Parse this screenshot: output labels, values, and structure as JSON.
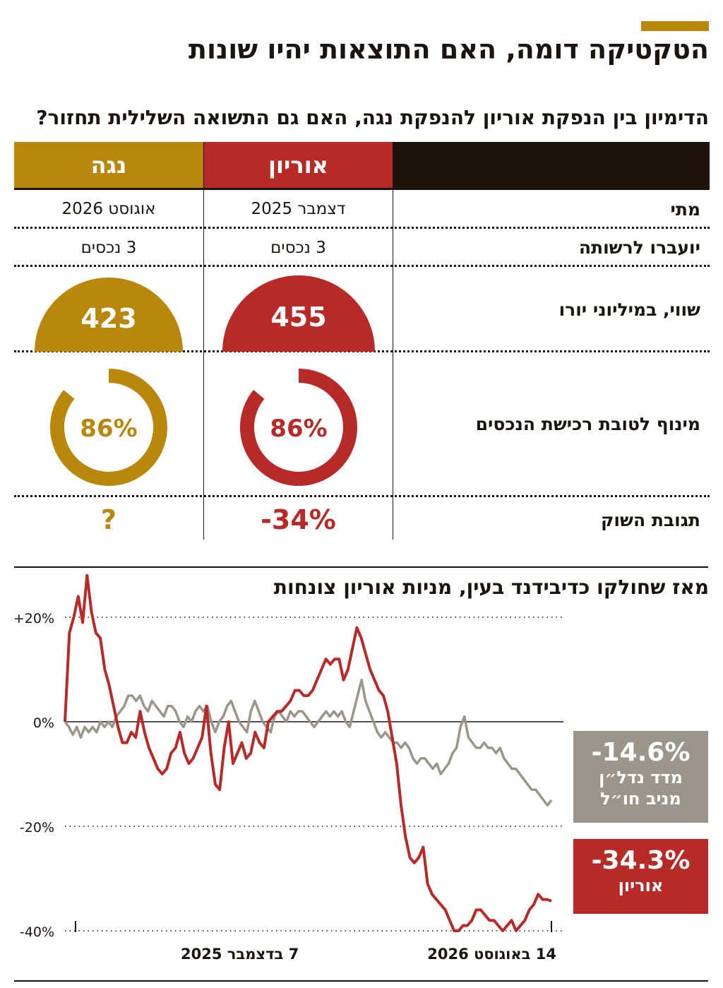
{
  "title": "הטקטיקה דומה, האם התוצאות יהיו שונות",
  "subtitle": "הדימיון בין הנפקת אוריון להנפקת נגה, האם גם התשואה השלילית תחזור?",
  "colors": {
    "orion": "#b82a27",
    "nega": "#b8870b",
    "dark": "#1c120a",
    "index": "#9c968a"
  },
  "table": {
    "columns": {
      "orion": "אוריון",
      "nega": "נגה"
    },
    "rows": {
      "when": {
        "label": "מתי",
        "orion": "דצמבר 2025",
        "nega": "אוגוסט 2026"
      },
      "assets": {
        "label": "יועברו לרשותה",
        "orion": "3 נכסים",
        "nega": "3 נכסים"
      },
      "value": {
        "label": "שווי, במיליוני יורו",
        "orion": 455,
        "nega": 423
      },
      "leverage": {
        "label": "מינוף לטובת רכישת הנכסים",
        "orion": "86%",
        "nega": "86%",
        "orion_fraction": 0.86,
        "nega_fraction": 0.86
      },
      "market": {
        "label": "תגובת השוק",
        "orion": "-34%",
        "nega": "?"
      }
    }
  },
  "chart_title": "מאז שחולקו כדיבידנד בעין, מניות אוריון צונחות",
  "summary": {
    "index": {
      "value": "-14.6%",
      "label_1": "מדד נדל״ן",
      "label_2": "מניב חו״ל"
    },
    "orion": {
      "value": "-34.3%",
      "label": "אוריון"
    }
  },
  "chart_data": {
    "type": "line",
    "title": "מאז שחולקו כדיבידנד בעין, מניות אוריון צונחות",
    "x_start_label": "7 בדצמבר 2025",
    "x_end_label": "14 באוגוסט 2026",
    "ylim": [
      -40,
      28
    ],
    "y_ticks": [
      20,
      0,
      -20,
      -40
    ],
    "y_tick_labels": [
      "+20%",
      "0%",
      "-20%",
      "-40%"
    ],
    "series": [
      {
        "name": "מדד נדל״ן מניב חו״ל",
        "color": "#9c968a",
        "final": -14.6,
        "values": [
          0,
          -1,
          -2.5,
          -1,
          -3,
          -1,
          -2,
          -1,
          -2,
          0,
          -1,
          0,
          -1,
          1,
          2,
          3,
          5,
          5,
          4,
          5,
          3,
          2,
          4,
          3,
          2,
          1,
          3,
          3,
          2,
          0,
          -1,
          1,
          0,
          2,
          3,
          2,
          3,
          0,
          -2,
          0,
          1,
          3,
          4,
          2,
          0,
          -1,
          -2,
          2,
          4,
          2,
          0,
          -1,
          -2,
          1,
          2,
          1,
          0,
          2,
          1,
          2,
          2,
          1,
          0,
          -1,
          0,
          1,
          2,
          1,
          2,
          1,
          2,
          0,
          -1,
          2,
          5,
          8,
          4,
          2,
          0,
          -2,
          -3,
          -2,
          -3,
          -4,
          -4,
          -5,
          -4,
          -5,
          -7,
          -8,
          -7,
          -7,
          -8,
          -9,
          -8,
          -10,
          -9,
          -8,
          -6,
          -5,
          -1,
          1,
          -3,
          -4,
          -5,
          -5,
          -4,
          -5,
          -5,
          -6,
          -5,
          -7,
          -8,
          -9,
          -9,
          -10,
          -11,
          -12,
          -13,
          -13,
          -14,
          -15,
          -16,
          -15
        ]
      },
      {
        "name": "אוריון",
        "color": "#b82a27",
        "final": -34.3,
        "values": [
          0,
          17,
          20,
          24,
          19,
          28,
          21,
          17,
          16,
          10,
          7,
          3,
          -1,
          -4,
          -4,
          -2,
          -3,
          2,
          -2,
          -5,
          -7,
          -9,
          -10,
          -9,
          -6,
          -5,
          -2,
          -6,
          -8,
          -7,
          -5,
          -3,
          3,
          -6,
          -12,
          -13,
          -5,
          0,
          -8,
          -6,
          -4,
          -7,
          -6,
          -2,
          -4,
          -5,
          0,
          1,
          2,
          2,
          3,
          4,
          6,
          6,
          5,
          5,
          6,
          8,
          10,
          12,
          11,
          12,
          12,
          8,
          10,
          14,
          18,
          16,
          13,
          10,
          8,
          6,
          5,
          2,
          -3,
          -8,
          -16,
          -22,
          -26,
          -27,
          -26,
          -24,
          -31,
          -33,
          -34,
          -35,
          -36,
          -38,
          -40,
          -40,
          -39,
          -39,
          -38,
          -36,
          -36,
          -37,
          -38,
          -38,
          -39,
          -40,
          -39,
          -38,
          -40,
          -39,
          -38,
          -36,
          -35,
          -33,
          -34,
          -34,
          -34.3
        ]
      }
    ]
  }
}
